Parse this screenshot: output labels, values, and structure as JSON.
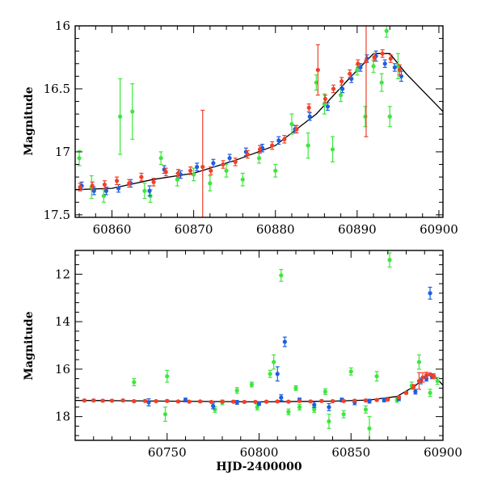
{
  "colors": {
    "green": "#3ee63e",
    "red": "#f0402a",
    "blue": "#1c5fe0",
    "model": "#000000"
  },
  "chart_data": [
    {
      "type": "scatter",
      "title": "",
      "xlabel": "",
      "ylabel": "Magnitude",
      "xlim": [
        60855.5,
        60900.5
      ],
      "ylim": [
        17.52,
        16.0
      ],
      "y_inverted": true,
      "grid": false,
      "legend": "none",
      "xticks": [
        60860,
        60870,
        60880,
        60890,
        60900
      ],
      "yticks": [
        16,
        16.5,
        17,
        17.5
      ],
      "ytick_labels": [
        "16",
        "16.5",
        "17",
        "17.5"
      ],
      "model_line": {
        "x": [
          60855.5,
          60860,
          60865,
          60870,
          60875,
          60880,
          60885,
          60889,
          60892,
          60894,
          60896,
          60900.5
        ],
        "y": [
          17.3,
          17.29,
          17.22,
          17.17,
          17.07,
          16.95,
          16.7,
          16.42,
          16.22,
          16.22,
          16.38,
          16.68
        ]
      },
      "series": [
        {
          "color": "green",
          "x": [
            60856,
            60857.5,
            60859,
            60861,
            60862.5,
            60864,
            60864.7,
            60866,
            60868,
            60870,
            60872,
            60874,
            60876,
            60878,
            60880,
            60882,
            60884,
            60885,
            60886,
            60887,
            60888,
            60890,
            60891,
            60892,
            60893,
            60893.6,
            60894,
            60895
          ],
          "y": [
            17.05,
            17.28,
            17.35,
            16.72,
            16.68,
            17.31,
            17.35,
            17.05,
            17.22,
            17.18,
            17.25,
            17.15,
            17.22,
            17.05,
            17.15,
            16.78,
            16.95,
            16.45,
            16.62,
            16.98,
            16.55,
            16.35,
            16.72,
            16.32,
            16.45,
            16.04,
            16.72,
            16.32
          ],
          "err": [
            0.06,
            0.09,
            0.05,
            0.3,
            0.22,
            0.06,
            0.05,
            0.05,
            0.05,
            0.05,
            0.06,
            0.05,
            0.05,
            0.04,
            0.05,
            0.08,
            0.1,
            0.06,
            0.08,
            0.1,
            0.05,
            0.04,
            0.08,
            0.05,
            0.07,
            0.05,
            0.08,
            0.1
          ]
        },
        {
          "color": "blue",
          "x": [
            60856.3,
            60857.8,
            60859.3,
            60860.8,
            60862.3,
            60864.6,
            60866.4,
            60868.4,
            60870.4,
            60872.4,
            60874.4,
            60876.4,
            60878.4,
            60880.4,
            60882.4,
            60884.2,
            60886.4,
            60888.2,
            60889.3,
            60890.4,
            60891.2,
            60892.3,
            60893.4,
            60894.6,
            60895.4
          ],
          "y": [
            17.27,
            17.31,
            17.31,
            17.29,
            17.25,
            17.31,
            17.14,
            17.18,
            17.12,
            17.09,
            17.05,
            17.0,
            16.97,
            16.91,
            16.82,
            16.72,
            16.64,
            16.5,
            16.42,
            16.33,
            16.26,
            16.24,
            16.3,
            16.33,
            16.4
          ],
          "err": [
            0.03,
            0.03,
            0.03,
            0.03,
            0.03,
            0.04,
            0.03,
            0.03,
            0.03,
            0.03,
            0.03,
            0.03,
            0.03,
            0.03,
            0.03,
            0.03,
            0.03,
            0.03,
            0.03,
            0.03,
            0.03,
            0.04,
            0.03,
            0.03,
            0.04
          ]
        },
        {
          "color": "red",
          "x": [
            60856.1,
            60857.6,
            60859.1,
            60860.6,
            60862.1,
            60863.6,
            60865.1,
            60866.6,
            60868.1,
            60869.6,
            60871.1,
            60872.1,
            60873.6,
            60875.1,
            60876.6,
            60878.1,
            60879.6,
            60881.1,
            60882.6,
            60884.1,
            60885.2,
            60886.1,
            60887.1,
            60888.1,
            60889.1,
            60890.1,
            60891.1,
            60892.1,
            60893.1,
            60894.1,
            60895.2
          ],
          "y": [
            17.28,
            17.27,
            17.26,
            17.23,
            17.25,
            17.2,
            17.24,
            17.16,
            17.17,
            17.15,
            17.12,
            17.15,
            17.1,
            17.08,
            17.02,
            16.98,
            16.95,
            16.9,
            16.82,
            16.65,
            16.35,
            16.58,
            16.5,
            16.44,
            16.38,
            16.3,
            16.28,
            16.25,
            16.22,
            16.26,
            16.35
          ],
          "err": [
            0.03,
            0.03,
            0.03,
            0.03,
            0.03,
            0.03,
            0.03,
            0.03,
            0.03,
            0.03,
            0.45,
            0.03,
            0.03,
            0.03,
            0.03,
            0.03,
            0.03,
            0.03,
            0.03,
            0.03,
            0.2,
            0.03,
            0.03,
            0.03,
            0.03,
            0.03,
            0.6,
            0.03,
            0.03,
            0.03,
            0.04
          ]
        }
      ]
    },
    {
      "type": "scatter",
      "title": "",
      "xlabel": "HJD-2400000",
      "ylabel": "Magnitude",
      "xlim": [
        60700,
        60900
      ],
      "ylim": [
        19.0,
        11.0
      ],
      "y_inverted": true,
      "grid": false,
      "legend": "none",
      "xticks": [
        60750,
        60800,
        60850,
        60900
      ],
      "yticks": [
        12,
        14,
        16,
        18
      ],
      "ytick_labels": [
        "12",
        "14",
        "16",
        "18"
      ],
      "model_line": {
        "x": [
          60700,
          60720,
          60750,
          60800,
          60840,
          60860,
          60875,
          60885,
          60892,
          60895,
          60900
        ],
        "y": [
          17.32,
          17.33,
          17.35,
          17.38,
          17.35,
          17.3,
          17.15,
          16.7,
          16.22,
          16.25,
          16.68
        ]
      },
      "series": [
        {
          "color": "green",
          "x": [
            60732,
            60749,
            60750,
            60776,
            60780,
            60788,
            60796,
            60799,
            60806,
            60808,
            60812,
            60816,
            60820,
            60822,
            60830,
            60836,
            60838,
            60846,
            60850,
            60858,
            60860,
            60864,
            60871,
            60875,
            60883,
            60887,
            60893,
            60897
          ],
          "y": [
            16.55,
            17.9,
            16.3,
            17.7,
            17.4,
            16.9,
            16.65,
            17.6,
            16.2,
            15.7,
            12.05,
            17.8,
            16.8,
            17.6,
            17.7,
            16.95,
            18.2,
            17.9,
            16.1,
            17.7,
            18.5,
            16.3,
            11.4,
            17.3,
            16.7,
            15.7,
            17.0,
            16.5
          ],
          "err": [
            0.15,
            0.3,
            0.25,
            0.12,
            0.1,
            0.12,
            0.1,
            0.12,
            0.15,
            0.3,
            0.25,
            0.12,
            0.1,
            0.12,
            0.12,
            0.12,
            0.3,
            0.15,
            0.15,
            0.15,
            0.5,
            0.2,
            0.3,
            0.1,
            0.15,
            0.3,
            0.15,
            0.15
          ]
        },
        {
          "color": "blue",
          "x": [
            60740,
            60760,
            60775,
            60788,
            60800,
            60810,
            60812,
            60814,
            60822,
            60830,
            60838,
            60845,
            60852,
            60860,
            60868,
            60876,
            60885,
            60888,
            60891,
            60893,
            60894
          ],
          "y": [
            17.4,
            17.3,
            17.55,
            17.4,
            17.45,
            16.2,
            17.2,
            14.85,
            17.3,
            17.5,
            17.6,
            17.3,
            17.4,
            17.35,
            17.3,
            17.25,
            16.95,
            16.5,
            16.4,
            12.8,
            16.3
          ],
          "err": [
            0.15,
            0.08,
            0.12,
            0.08,
            0.08,
            0.3,
            0.12,
            0.2,
            0.08,
            0.12,
            0.15,
            0.08,
            0.1,
            0.08,
            0.08,
            0.08,
            0.1,
            0.12,
            0.1,
            0.25,
            0.1
          ]
        },
        {
          "color": "red",
          "x": [
            60705,
            60710,
            60715,
            60720,
            60726,
            60732,
            60738,
            60744,
            60750,
            60756,
            60762,
            60768,
            60774,
            60780,
            60786,
            60792,
            60798,
            60804,
            60810,
            60816,
            60822,
            60828,
            60834,
            60840,
            60846,
            60852,
            60858,
            60864,
            60870,
            60876,
            60880,
            60884,
            60887,
            60889,
            60891,
            60893,
            60895
          ],
          "y": [
            17.32,
            17.32,
            17.33,
            17.33,
            17.32,
            17.35,
            17.34,
            17.35,
            17.34,
            17.36,
            17.37,
            17.36,
            17.38,
            17.37,
            17.37,
            17.38,
            17.38,
            17.37,
            17.36,
            17.37,
            17.34,
            17.36,
            17.34,
            17.35,
            17.34,
            17.33,
            17.32,
            17.3,
            17.28,
            17.18,
            17.0,
            16.75,
            16.5,
            16.35,
            16.25,
            16.22,
            16.3
          ],
          "err": [
            0.04,
            0.04,
            0.04,
            0.04,
            0.04,
            0.04,
            0.04,
            0.04,
            0.04,
            0.04,
            0.04,
            0.04,
            0.04,
            0.04,
            0.04,
            0.04,
            0.04,
            0.04,
            0.04,
            0.04,
            0.04,
            0.04,
            0.04,
            0.04,
            0.04,
            0.04,
            0.04,
            0.04,
            0.04,
            0.04,
            0.05,
            0.1,
            0.35,
            0.2,
            0.12,
            0.05,
            0.1
          ]
        }
      ]
    }
  ]
}
